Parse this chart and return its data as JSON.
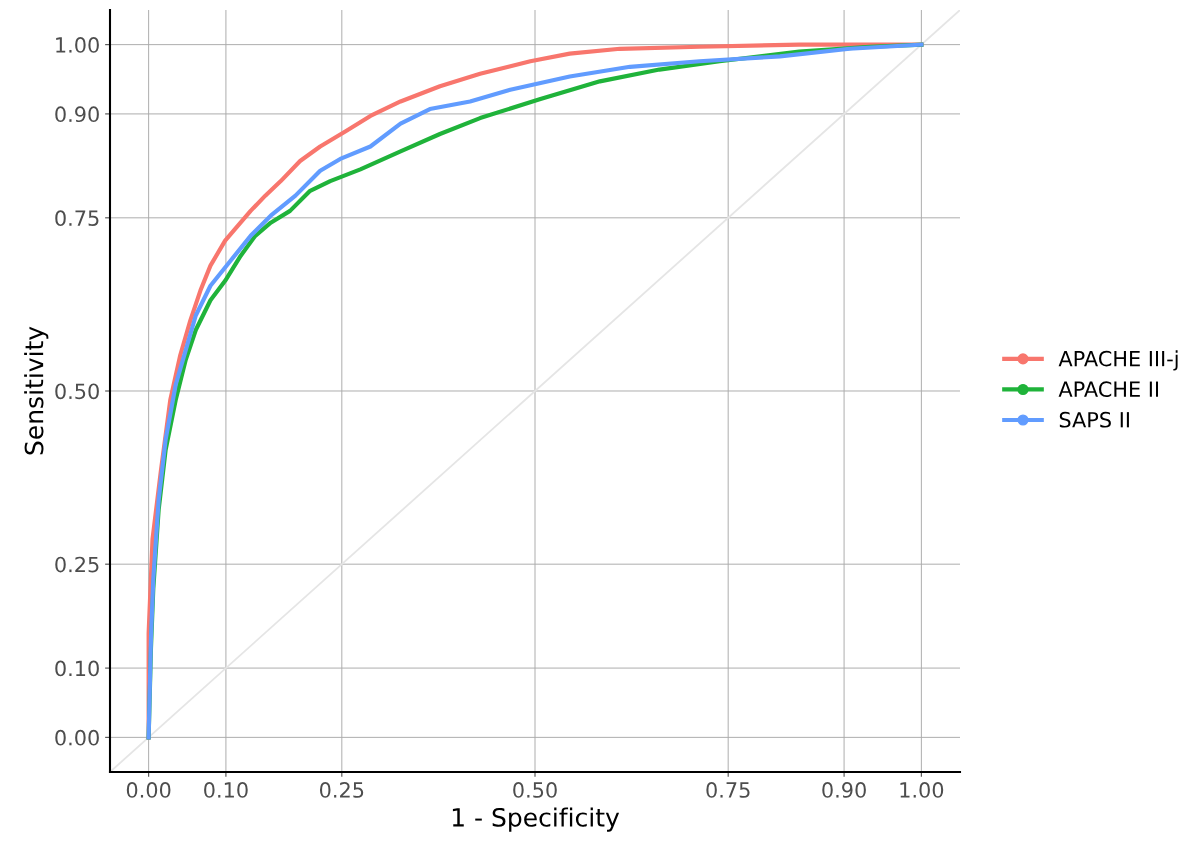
{
  "chart_data": {
    "type": "line",
    "xlabel": "1 - Specificity",
    "ylabel": "Sensitivity",
    "xlim": [
      -0.05,
      1.05
    ],
    "ylim": [
      -0.05,
      1.05
    ],
    "xticks": [
      {
        "value": 0,
        "label": "0.00"
      },
      {
        "value": 0.1,
        "label": "0.10"
      },
      {
        "value": 0.25,
        "label": "0.25"
      },
      {
        "value": 0.5,
        "label": "0.50"
      },
      {
        "value": 0.75,
        "label": "0.75"
      },
      {
        "value": 0.9,
        "label": "0.90"
      },
      {
        "value": 1,
        "label": "1.00"
      }
    ],
    "yticks": [
      {
        "value": 0,
        "label": "0.00"
      },
      {
        "value": 0.1,
        "label": "0.10"
      },
      {
        "value": 0.25,
        "label": "0.25"
      },
      {
        "value": 0.5,
        "label": "0.50"
      },
      {
        "value": 0.75,
        "label": "0.75"
      },
      {
        "value": 0.9,
        "label": "0.90"
      },
      {
        "value": 1,
        "label": "1.00"
      }
    ],
    "grid": true,
    "legend": "right",
    "series": [
      {
        "color": "#e5e5e5",
        "x": [
          -0.05,
          1.05
        ],
        "values": [
          -0.05,
          1.05
        ]
      },
      {
        "name": "APACHE III-j",
        "color": "#f8766d",
        "x": [
          0,
          0,
          0.005,
          0.016,
          0.028,
          0.041,
          0.054,
          0.067,
          0.08,
          0.099,
          0.112,
          0.132,
          0.151,
          0.171,
          0.196,
          0.222,
          0.255,
          0.287,
          0.326,
          0.377,
          0.429,
          0.494,
          0.545,
          0.61,
          0.713,
          0.842,
          1
        ],
        "values": [
          0,
          0.15,
          0.286,
          0.386,
          0.487,
          0.552,
          0.602,
          0.645,
          0.681,
          0.717,
          0.734,
          0.76,
          0.782,
          0.803,
          0.832,
          0.853,
          0.875,
          0.897,
          0.918,
          0.94,
          0.958,
          0.976,
          0.987,
          0.994,
          0.997,
          1,
          1
        ]
      },
      {
        "name": "APACHE II",
        "color": "#1fb33a",
        "x": [
          0,
          0.003,
          0.006,
          0.013,
          0.022,
          0.035,
          0.048,
          0.061,
          0.08,
          0.099,
          0.119,
          0.138,
          0.158,
          0.183,
          0.209,
          0.235,
          0.274,
          0.326,
          0.377,
          0.429,
          0.506,
          0.584,
          0.661,
          0.739,
          0.842,
          0.933,
          1
        ],
        "values": [
          0,
          0.128,
          0.214,
          0.329,
          0.415,
          0.487,
          0.545,
          0.588,
          0.631,
          0.659,
          0.695,
          0.724,
          0.743,
          0.76,
          0.789,
          0.803,
          0.82,
          0.846,
          0.871,
          0.894,
          0.921,
          0.947,
          0.964,
          0.976,
          0.99,
          0.997,
          1
        ]
      },
      {
        "name": "SAPS II",
        "color": "#619cff",
        "x": [
          0,
          0.003,
          0.006,
          0.013,
          0.022,
          0.035,
          0.048,
          0.061,
          0.08,
          0.106,
          0.132,
          0.158,
          0.19,
          0.222,
          0.248,
          0.287,
          0.326,
          0.364,
          0.416,
          0.468,
          0.545,
          0.623,
          0.713,
          0.817,
          0.907,
          1
        ],
        "values": [
          0,
          0.142,
          0.228,
          0.343,
          0.43,
          0.509,
          0.559,
          0.609,
          0.652,
          0.688,
          0.724,
          0.753,
          0.782,
          0.818,
          0.835,
          0.853,
          0.886,
          0.907,
          0.918,
          0.935,
          0.954,
          0.968,
          0.976,
          0.983,
          0.994,
          1
        ]
      }
    ]
  }
}
